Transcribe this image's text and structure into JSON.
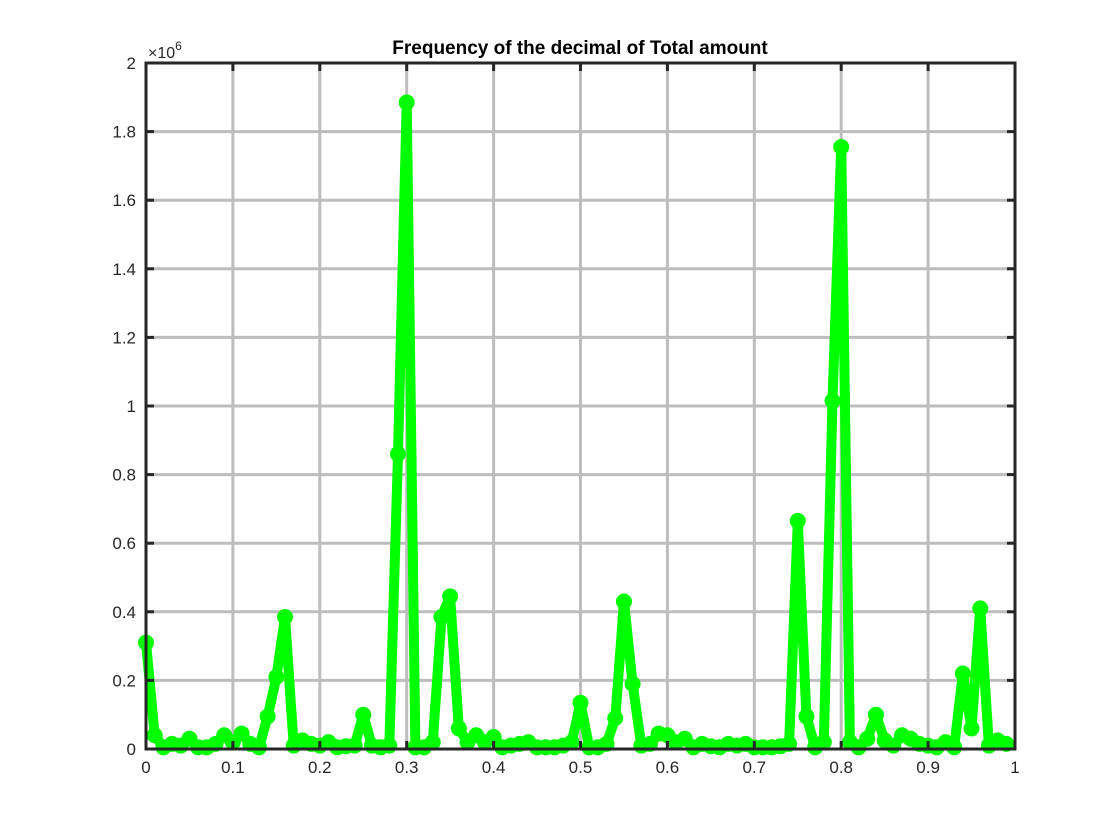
{
  "chart_data": {
    "type": "line",
    "title": "Frequency of the decimal of Total amount",
    "xlabel": "",
    "ylabel": "",
    "xlim": [
      0,
      1
    ],
    "ylim": [
      0,
      2000000
    ],
    "y_exponent_base": "×10",
    "y_exponent_power": "6",
    "xticks": [
      0,
      0.1,
      0.2,
      0.3,
      0.4,
      0.5,
      0.6,
      0.7,
      0.8,
      0.9,
      1
    ],
    "xtick_labels": [
      "0",
      "0.1",
      "0.2",
      "0.3",
      "0.4",
      "0.5",
      "0.6",
      "0.7",
      "0.8",
      "0.9",
      "1"
    ],
    "yticks": [
      0,
      200000,
      400000,
      600000,
      800000,
      1000000,
      1200000,
      1400000,
      1600000,
      1800000,
      2000000
    ],
    "ytick_labels": [
      "0",
      "0.2",
      "0.4",
      "0.6",
      "0.8",
      "1",
      "1.2",
      "1.4",
      "1.6",
      "1.8",
      "2"
    ],
    "grid": true,
    "line_color": "#00ff00",
    "series": [
      {
        "x": [
          0.0,
          0.01,
          0.02,
          0.03,
          0.04,
          0.05,
          0.06,
          0.07,
          0.08,
          0.09,
          0.1,
          0.11,
          0.12,
          0.13,
          0.14,
          0.15,
          0.16,
          0.17,
          0.18,
          0.19,
          0.2,
          0.21,
          0.22,
          0.23,
          0.24,
          0.25,
          0.26,
          0.27,
          0.28,
          0.29,
          0.3,
          0.31,
          0.32,
          0.33,
          0.34,
          0.35,
          0.36,
          0.37,
          0.38,
          0.39,
          0.4,
          0.41,
          0.42,
          0.43,
          0.44,
          0.45,
          0.46,
          0.47,
          0.48,
          0.49,
          0.5,
          0.51,
          0.52,
          0.53,
          0.54,
          0.55,
          0.56,
          0.57,
          0.58,
          0.59,
          0.6,
          0.61,
          0.62,
          0.63,
          0.64,
          0.65,
          0.66,
          0.67,
          0.68,
          0.69,
          0.7,
          0.71,
          0.72,
          0.73,
          0.74,
          0.75,
          0.76,
          0.77,
          0.78,
          0.79,
          0.8,
          0.81,
          0.82,
          0.83,
          0.84,
          0.85,
          0.86,
          0.87,
          0.88,
          0.89,
          0.9,
          0.91,
          0.92,
          0.93,
          0.94,
          0.95,
          0.96,
          0.97,
          0.98,
          0.99
        ],
        "y": [
          310000,
          40000,
          5000,
          15000,
          10000,
          30000,
          5000,
          5000,
          15000,
          40000,
          20000,
          45000,
          15000,
          5000,
          95000,
          210000,
          385000,
          10000,
          25000,
          15000,
          10000,
          20000,
          5000,
          8000,
          10000,
          100000,
          10000,
          5000,
          10000,
          860000,
          1885000,
          5000,
          5000,
          20000,
          385000,
          445000,
          60000,
          20000,
          40000,
          20000,
          35000,
          5000,
          10000,
          15000,
          20000,
          5000,
          5000,
          5000,
          10000,
          20000,
          135000,
          5000,
          5000,
          15000,
          90000,
          430000,
          190000,
          10000,
          15000,
          45000,
          40000,
          20000,
          30000,
          5000,
          15000,
          8000,
          5000,
          15000,
          10000,
          15000,
          5000,
          5000,
          5000,
          8000,
          15000,
          665000,
          95000,
          5000,
          20000,
          1015000,
          1755000,
          20000,
          5000,
          30000,
          100000,
          25000,
          10000,
          40000,
          30000,
          15000,
          10000,
          5000,
          20000,
          5000,
          220000,
          60000,
          410000,
          10000,
          25000,
          15000
        ]
      }
    ]
  }
}
